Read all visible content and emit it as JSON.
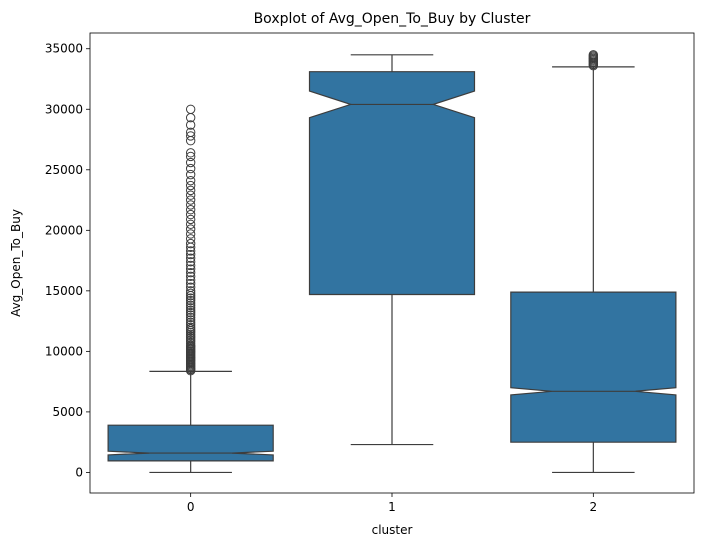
{
  "chart_data": {
    "type": "boxplot",
    "title": "Boxplot of Avg_Open_To_Buy by Cluster",
    "xlabel": "cluster",
    "ylabel": "Avg_Open_To_Buy",
    "categories": [
      "0",
      "1",
      "2"
    ],
    "y_ticks": [
      0,
      5000,
      10000,
      15000,
      20000,
      25000,
      30000,
      35000
    ],
    "ylim": [
      -1700,
      36300
    ],
    "notch": true,
    "box_color": "#3274a1",
    "edge_color": "#3d3d3d",
    "boxes": [
      {
        "category": "0",
        "whisker_low": 0,
        "q1": 950,
        "median": 1600,
        "q3": 3900,
        "whisker_high": 8350,
        "notch_low": 1450,
        "notch_high": 1750,
        "outliers": [
          8400,
          8500,
          8600,
          8700,
          8800,
          8900,
          9000,
          9100,
          9200,
          9300,
          9400,
          9500,
          9600,
          9700,
          9800,
          9900,
          10000,
          10100,
          10200,
          10300,
          10400,
          10500,
          10650,
          10800,
          10950,
          11100,
          11250,
          11400,
          11550,
          11700,
          11850,
          12000,
          12200,
          12400,
          12600,
          12800,
          13000,
          13200,
          13400,
          13600,
          13800,
          14000,
          14200,
          14400,
          14600,
          14800,
          15000,
          15300,
          15600,
          15900,
          16200,
          16500,
          16800,
          17100,
          17400,
          17700,
          18000,
          18300,
          18600,
          18900,
          19300,
          19700,
          20100,
          20500,
          20900,
          21300,
          21700,
          22100,
          22500,
          22900,
          23300,
          23700,
          24100,
          24600,
          25100,
          25600,
          26100,
          26400,
          27400,
          27800,
          28100,
          28700,
          29300,
          30000
        ]
      },
      {
        "category": "1",
        "whisker_low": 2300,
        "q1": 14700,
        "median": 30400,
        "q3": 33100,
        "whisker_high": 34500,
        "notch_low": 29300,
        "notch_high": 31500,
        "outliers": []
      },
      {
        "category": "2",
        "whisker_low": 0,
        "q1": 2500,
        "median": 6700,
        "q3": 14900,
        "whisker_high": 33500,
        "notch_low": 6400,
        "notch_high": 7000,
        "outliers": [
          33600,
          33700,
          33800,
          33900,
          34000,
          34100,
          34200,
          34300,
          34400,
          34500
        ]
      }
    ]
  }
}
